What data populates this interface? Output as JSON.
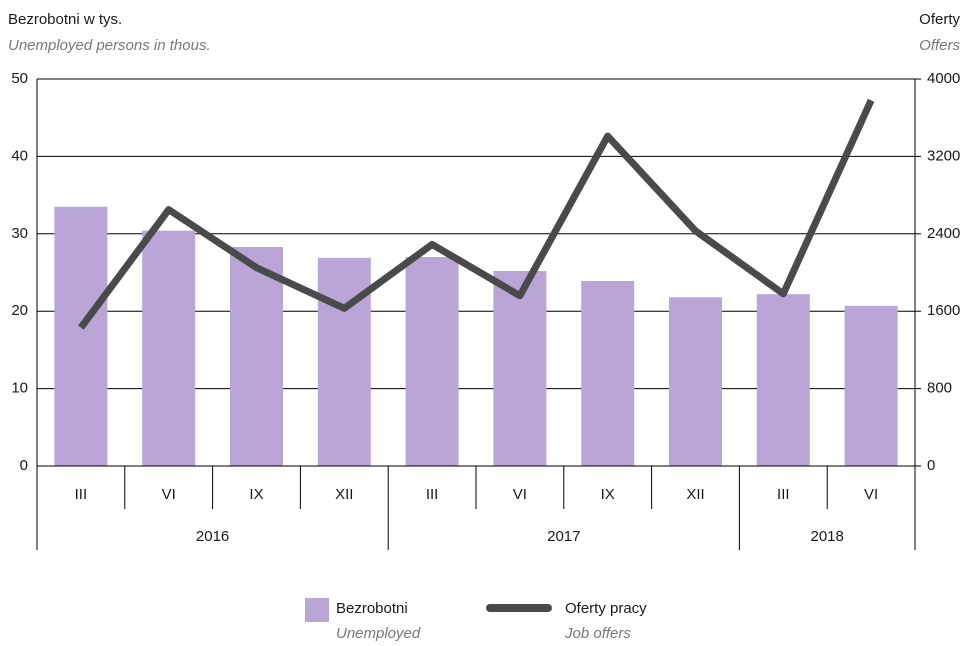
{
  "chart_data": {
    "type": "bar+line",
    "y_title": "Bezrobotni w tys.",
    "y_subtitle": "Unemployed persons in thous.",
    "y2_title": "Oferty",
    "y2_subtitle": "Offers",
    "groups": [
      {
        "label": "2016",
        "categories": [
          "III",
          "VI",
          "IX",
          "XII"
        ]
      },
      {
        "label": "2017",
        "categories": [
          "III",
          "VI",
          "IX",
          "XII"
        ]
      },
      {
        "label": "2018",
        "categories": [
          "III",
          "VI"
        ]
      }
    ],
    "series": [
      {
        "name": "Bezrobotni",
        "name_en": "Unemployed",
        "type": "bar",
        "color": "#b9a5d6",
        "values": [
          33.5,
          30.4,
          28.3,
          26.9,
          27.0,
          25.2,
          23.9,
          21.8,
          22.2,
          20.7
        ]
      },
      {
        "name": "Oferty pracy",
        "name_en": "Job offers",
        "type": "line",
        "axis": "y2",
        "color": "#4a4a4a",
        "values": [
          1430,
          2650,
          2050,
          1630,
          2290,
          1760,
          3410,
          2430,
          1780,
          3780
        ]
      }
    ],
    "ylim": [
      0,
      50
    ],
    "yticks": [
      0,
      10,
      20,
      30,
      40,
      50
    ],
    "y2lim": [
      0,
      4000
    ],
    "y2ticks": [
      0,
      800,
      1600,
      2400,
      3200,
      4000
    ],
    "grid": true
  }
}
